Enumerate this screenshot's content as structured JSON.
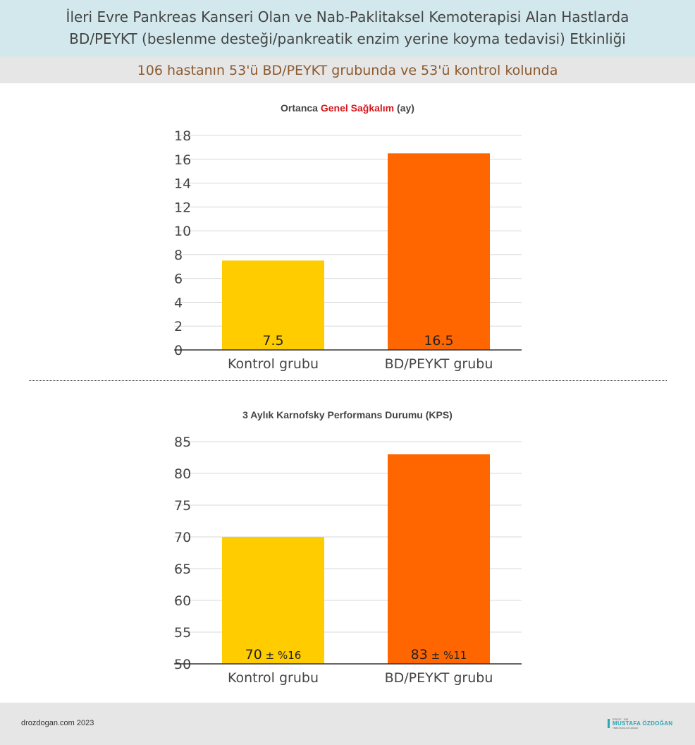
{
  "header": {
    "title_line1": "İleri Evre Pankreas Kanseri Olan ve Nab-Paklitaksel Kemoterapisi Alan Hastlarda",
    "title_line2": "BD/PEYKT (beslenme desteği/pankreatik enzim yerine koyma tedavisi) Etkinliği",
    "subtitle": "106 hastanın 53'ü BD/PEYKT grubunda ve 53'ü kontrol kolunda"
  },
  "chart_data": [
    {
      "type": "bar",
      "title_prefix": "Ortanca ",
      "title_highlight": "Genel Sağkalım",
      "title_suffix": " (ay)",
      "categories": [
        "Kontrol grubu",
        "BD/PEYKT grubu"
      ],
      "values": [
        7.5,
        16.5
      ],
      "value_labels": [
        "7.5",
        "16.5"
      ],
      "value_suffixes": [
        "",
        ""
      ],
      "ylim": [
        0,
        18
      ],
      "yticks": [
        0,
        2,
        4,
        6,
        8,
        10,
        12,
        14,
        16,
        18
      ],
      "colors": [
        "#ffcc00",
        "#ff6600"
      ],
      "grid": true,
      "legend": "none"
    },
    {
      "type": "bar",
      "title_prefix": "3 Aylık Karnofsky Performans Durumu (KPS)",
      "title_highlight": "",
      "title_suffix": "",
      "categories": [
        "Kontrol grubu",
        "BD/PEYKT grubu"
      ],
      "values": [
        70,
        83
      ],
      "value_labels": [
        "70",
        "83"
      ],
      "value_suffixes": [
        " ± %16",
        " ± %11"
      ],
      "ylim": [
        50,
        85
      ],
      "yticks": [
        50,
        55,
        60,
        65,
        70,
        75,
        80,
        85
      ],
      "colors": [
        "#ffcc00",
        "#ff6600"
      ],
      "grid": true,
      "legend": "none"
    }
  ],
  "footer": {
    "site": "drozdogan.com 2023",
    "logo_small": "PROF. DR.",
    "logo_name": "MUSTAFA ÖZDOĞAN",
    "logo_sub": "TIBBİ ONKOLOJİ UZMANI"
  }
}
